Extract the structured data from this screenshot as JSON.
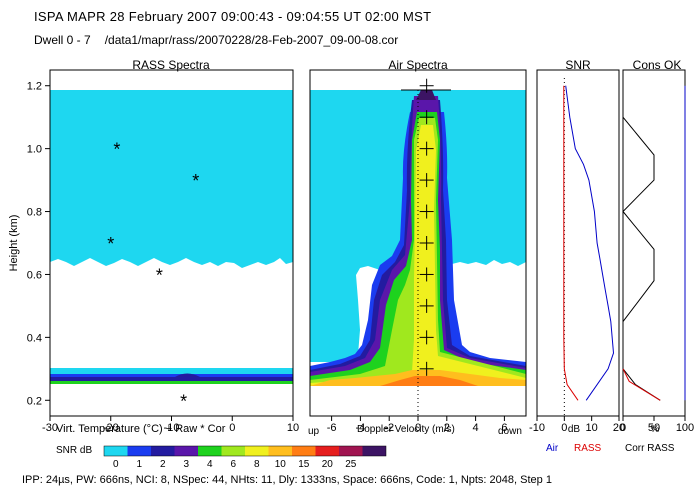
{
  "header": {
    "line1": "ISPA   MAPR   28 February 2007   09:00:43 - 09:04:55 UT     02:00 MST",
    "dwell_label": "Dwell  0 - 7",
    "file_path": "/data1/mapr/rass/20070228/28-Feb-2007_09-00-08.cor"
  },
  "footer": {
    "params": "IPP: 24µs,  PW: 666ns,  NCI: 8,  NSpec: 44,  NHts: 11,  Dly: 1333ns,  Space: 666ns,  Code: 1,  Npts: 2048,  Step 1"
  },
  "colors": {
    "snr_scale": [
      "#1ed7f0",
      "#1a3cf0",
      "#231ba0",
      "#5a16aa",
      "#1ed21e",
      "#a0e81e",
      "#f0f01e",
      "#ffbe1e",
      "#ff7d14",
      "#e61e1e",
      "#a01450",
      "#3c1464"
    ],
    "air_line": "#0000c8",
    "rass_line": "#dc0000",
    "corr_line": "#000000"
  },
  "chart_data": [
    {
      "type": "heatmap",
      "title": "RASS Spectra",
      "xlabel": "Virt. Temperature (°C)  + Raw  * Cor",
      "ylabel": "Height (km)",
      "xlim": [
        -30,
        10
      ],
      "ylim": [
        0.15,
        1.25
      ],
      "xticks": [
        -30,
        -20,
        -10,
        0,
        10
      ],
      "yticks": [
        0.2,
        0.4,
        0.6,
        0.8,
        1.0,
        1.2
      ],
      "markers": {
        "symbol": "*",
        "name": "Cor",
        "points": [
          {
            "x": -19,
            "y": 1.0
          },
          {
            "x": -6,
            "y": 0.9
          },
          {
            "x": -20,
            "y": 0.7
          },
          {
            "x": -12,
            "y": 0.6
          },
          {
            "x": -8,
            "y": 0.2
          }
        ]
      }
    },
    {
      "type": "heatmap",
      "title": "Air Spectra",
      "xlabel": "Doppler Velocity (m/s)",
      "xlabel_left": "up",
      "xlabel_right": "down",
      "xlim": [
        -7.5,
        7.5
      ],
      "ylim": [
        0.15,
        1.25
      ],
      "xticks": [
        -6,
        -4,
        -2,
        0,
        2,
        4,
        6
      ],
      "markers": {
        "symbol": "+",
        "points": [
          {
            "x": 0.6,
            "y": 1.2
          },
          {
            "x": 0.6,
            "y": 1.1
          },
          {
            "x": 0.6,
            "y": 1.0
          },
          {
            "x": 0.6,
            "y": 0.9
          },
          {
            "x": 0.6,
            "y": 0.8
          },
          {
            "x": 0.6,
            "y": 0.7
          },
          {
            "x": 0.6,
            "y": 0.6
          },
          {
            "x": 0.6,
            "y": 0.5
          },
          {
            "x": 0.6,
            "y": 0.4
          },
          {
            "x": 0.6,
            "y": 0.3
          }
        ]
      }
    },
    {
      "type": "line",
      "title": "SNR",
      "xlabel": "dB",
      "xlim": [
        -10,
        20
      ],
      "xticks": [
        -10,
        0,
        10,
        20
      ],
      "ylim": [
        0.15,
        1.25
      ],
      "series": [
        {
          "name": "Air",
          "x": [
            0.5,
            2,
            4,
            7,
            9,
            11,
            12,
            13,
            14,
            15,
            16,
            17,
            18,
            16,
            8
          ],
          "y": [
            1.2,
            1.1,
            1.0,
            0.95,
            0.9,
            0.8,
            0.7,
            0.65,
            0.6,
            0.55,
            0.5,
            0.45,
            0.35,
            0.3,
            0.2
          ]
        },
        {
          "name": "RASS",
          "x": [
            -0.2,
            -0.2,
            -0.2,
            -0.2,
            -0.2,
            -0.2,
            -0.2,
            -0.2,
            -0.2,
            0,
            1,
            5
          ],
          "y": [
            1.2,
            1.1,
            1.0,
            0.9,
            0.8,
            0.7,
            0.6,
            0.5,
            0.4,
            0.3,
            0.25,
            0.2
          ]
        }
      ],
      "reference_line": {
        "x": 0,
        "style": "dotted"
      }
    },
    {
      "type": "line",
      "title": "Cons OK",
      "xlabel": "%",
      "xlim": [
        0,
        100
      ],
      "xticks": [
        0,
        50,
        100
      ],
      "ylim": [
        0.15,
        1.25
      ],
      "series": [
        {
          "name": "Corr",
          "x": [
            0,
            50,
            50,
            0,
            0,
            50,
            50,
            0,
            0,
            0,
            20,
            60
          ],
          "y": [
            1.1,
            0.98,
            0.9,
            0.8,
            0.8,
            0.68,
            0.58,
            0.45,
            0.4,
            0.3,
            0.25,
            0.2
          ]
        },
        {
          "name": "RASS",
          "x": [
            0,
            10,
            60
          ],
          "y": [
            0.3,
            0.26,
            0.2
          ]
        },
        {
          "name": "Air",
          "x": [
            100,
            100,
            100,
            100
          ],
          "y": [
            1.2,
            0.8,
            0.4,
            0.2
          ]
        }
      ]
    }
  ],
  "legend": {
    "title": "SNR dB",
    "labels": [
      "0",
      "1",
      "2",
      "3",
      "4",
      "6",
      "8",
      "10",
      "15",
      "20",
      "25"
    ],
    "line_legend": [
      {
        "label": "Air",
        "color": "#0000c8"
      },
      {
        "label": "RASS",
        "color": "#dc0000"
      },
      {
        "label": "Corr RASS",
        "color": "#000000"
      }
    ]
  }
}
